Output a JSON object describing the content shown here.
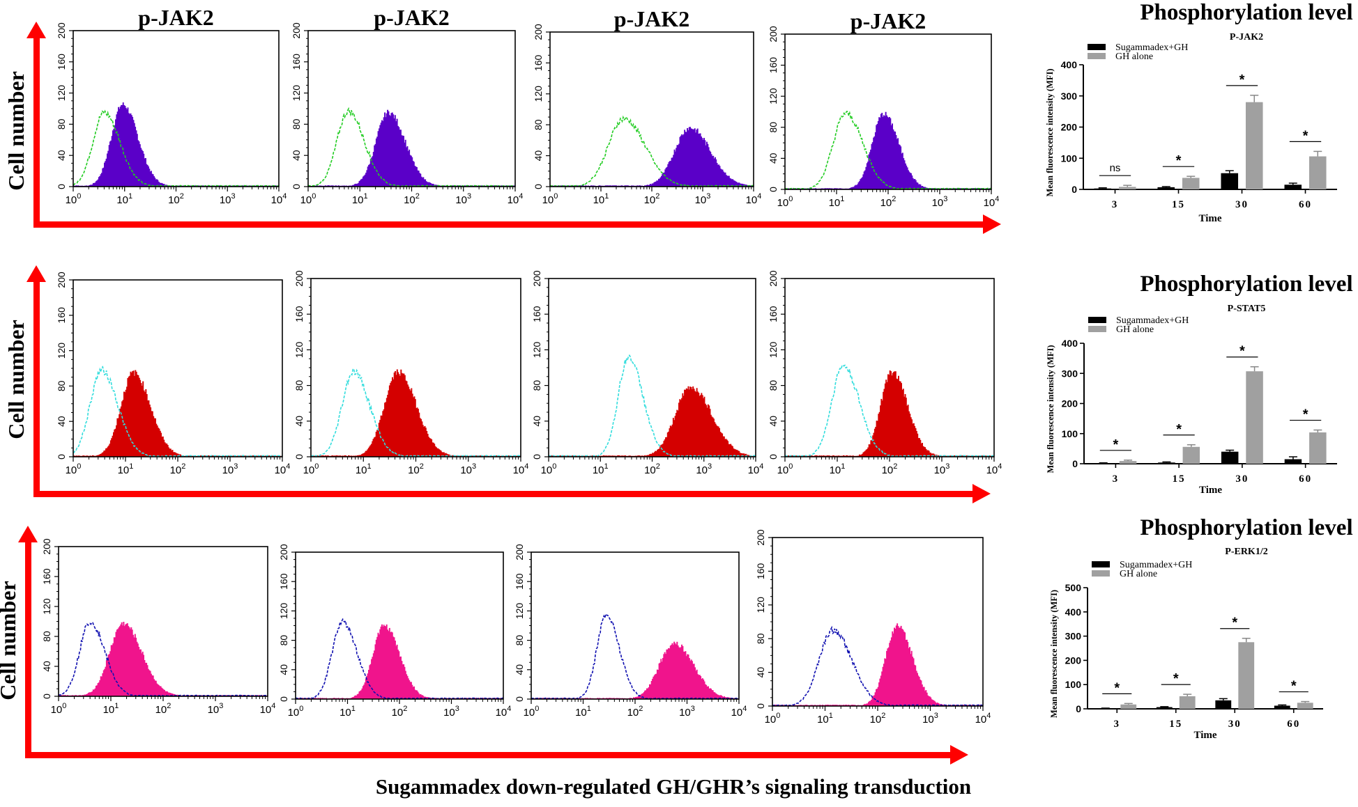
{
  "figure_caption": "Sugammadex down-regulated GH/GHR’s signaling transduction",
  "flow_axis_label": "Cell number",
  "colors": {
    "arrow": "#ff0000",
    "row1_fill": "#5a00c8",
    "row1_outline": "#22cc22",
    "row2_fill": "#d40000",
    "row2_outline": "#33dddd",
    "row3_fill": "#f0148c",
    "row3_outline": "#1010b0",
    "bar_treated": "#000000",
    "bar_control": "#a0a0a0"
  },
  "chart_data": [
    {
      "type": "histogram-overlay",
      "row": 1,
      "panels": [
        {
          "title": "p-JAK2",
          "x_scale": "log",
          "xlim": [
            1,
            10000
          ],
          "ylim": [
            0,
            200
          ],
          "x_ticks": [
            "10^0",
            "10^1",
            "10^2",
            "10^3",
            "10^4"
          ],
          "y_ticks": [
            "0",
            "40",
            "80",
            "120",
            "160",
            "200"
          ],
          "control": {
            "style": "dashed-outline",
            "peak_x": 4,
            "peak_y": 95,
            "spread_decades": 0.22
          },
          "stained": {
            "style": "filled",
            "peak_x": 9,
            "peak_y": 105,
            "spread_decades": 0.22
          }
        },
        {
          "title": "p-JAK2",
          "x_scale": "log",
          "xlim": [
            1,
            10000
          ],
          "ylim": [
            0,
            200
          ],
          "x_ticks": [
            "10^0",
            "10^1",
            "10^2",
            "10^3",
            "10^4"
          ],
          "y_ticks": [
            "0",
            "40",
            "80",
            "120",
            "160",
            "200"
          ],
          "control": {
            "style": "dashed-outline",
            "peak_x": 6,
            "peak_y": 97,
            "spread_decades": 0.22
          },
          "stained": {
            "style": "filled",
            "peak_x": 35,
            "peak_y": 95,
            "spread_decades": 0.24
          }
        },
        {
          "title": "p-JAK2",
          "x_scale": "log",
          "xlim": [
            1,
            10000
          ],
          "ylim": [
            0,
            200
          ],
          "x_ticks": [
            "10^0",
            "10^1",
            "10^2",
            "10^3",
            "10^4"
          ],
          "y_ticks": [
            "0",
            "40",
            "80",
            "120",
            "160",
            "200"
          ],
          "control": {
            "style": "dashed-outline",
            "peak_x": 28,
            "peak_y": 88,
            "spread_decades": 0.3
          },
          "stained": {
            "style": "filled",
            "peak_x": 550,
            "peak_y": 76,
            "spread_decades": 0.3
          }
        },
        {
          "title": "p-JAK2",
          "x_scale": "log",
          "xlim": [
            1,
            10000
          ],
          "ylim": [
            0,
            200
          ],
          "x_ticks": [
            "10^0",
            "10^1",
            "10^2",
            "10^3",
            "10^4"
          ],
          "y_ticks": [
            "0",
            "40",
            "80",
            "120",
            "160",
            "200"
          ],
          "control": {
            "style": "dashed-outline",
            "peak_x": 15,
            "peak_y": 98,
            "spread_decades": 0.24
          },
          "stained": {
            "style": "filled",
            "peak_x": 80,
            "peak_y": 97,
            "spread_decades": 0.22
          }
        }
      ]
    },
    {
      "type": "histogram-overlay",
      "row": 2,
      "panels": [
        {
          "title": "",
          "x_scale": "log",
          "xlim": [
            1,
            10000
          ],
          "ylim": [
            0,
            200
          ],
          "x_ticks": [
            "10^0",
            "10^1",
            "10^2",
            "10^3",
            "10^4"
          ],
          "y_ticks": [
            "0",
            "40",
            "80",
            "120",
            "160",
            "200"
          ],
          "control": {
            "style": "dashed-outline",
            "peak_x": 3.5,
            "peak_y": 98,
            "spread_decades": 0.22
          },
          "stained": {
            "style": "filled",
            "peak_x": 14,
            "peak_y": 95,
            "spread_decades": 0.24
          }
        },
        {
          "title": "",
          "x_scale": "log",
          "xlim": [
            1,
            10000
          ],
          "ylim": [
            0,
            200
          ],
          "x_ticks": [
            "10^0",
            "10^1",
            "10^2",
            "10^3",
            "10^4"
          ],
          "y_ticks": [
            "0",
            "40",
            "80",
            "120",
            "160",
            "200"
          ],
          "control": {
            "style": "dashed-outline",
            "peak_x": 6.5,
            "peak_y": 96,
            "spread_decades": 0.22
          },
          "stained": {
            "style": "filled",
            "peak_x": 45,
            "peak_y": 95,
            "spread_decades": 0.26
          }
        },
        {
          "title": "",
          "x_scale": "log",
          "xlim": [
            1,
            10000
          ],
          "ylim": [
            0,
            200
          ],
          "x_ticks": [
            "10^0",
            "10^1",
            "10^2",
            "10^3",
            "10^4"
          ],
          "y_ticks": [
            "0",
            "40",
            "80",
            "120",
            "160",
            "200"
          ],
          "control": {
            "style": "dashed-outline",
            "peak_x": 35,
            "peak_y": 112,
            "spread_decades": 0.2
          },
          "stained": {
            "style": "filled",
            "peak_x": 550,
            "peak_y": 78,
            "spread_decades": 0.3
          }
        },
        {
          "title": "",
          "x_scale": "log",
          "xlim": [
            1,
            10000
          ],
          "ylim": [
            0,
            200
          ],
          "x_ticks": [
            "10^0",
            "10^1",
            "10^2",
            "10^3",
            "10^4"
          ],
          "y_ticks": [
            "0",
            "40",
            "80",
            "120",
            "160",
            "200"
          ],
          "control": {
            "style": "dashed-outline",
            "peak_x": 13,
            "peak_y": 102,
            "spread_decades": 0.22
          },
          "stained": {
            "style": "filled",
            "peak_x": 110,
            "peak_y": 95,
            "spread_decades": 0.22
          }
        }
      ]
    },
    {
      "type": "histogram-overlay",
      "row": 3,
      "panels": [
        {
          "title": "",
          "x_scale": "log",
          "xlim": [
            1,
            10000
          ],
          "ylim": [
            0,
            200
          ],
          "x_ticks": [
            "10^0",
            "10^1",
            "10^2",
            "10^3",
            "10^4"
          ],
          "y_ticks": [
            "0",
            "40",
            "80",
            "120",
            "160",
            "200"
          ],
          "control": {
            "style": "dashed-outline",
            "peak_x": 4,
            "peak_y": 100,
            "spread_decades": 0.2
          },
          "stained": {
            "style": "filled",
            "peak_x": 17,
            "peak_y": 97,
            "spread_decades": 0.26
          }
        },
        {
          "title": "",
          "x_scale": "log",
          "xlim": [
            1,
            10000
          ],
          "ylim": [
            0,
            200
          ],
          "x_ticks": [
            "10^0",
            "10^1",
            "10^2",
            "10^3",
            "10^4"
          ],
          "y_ticks": [
            "0",
            "40",
            "80",
            "120",
            "160",
            "200"
          ],
          "control": {
            "style": "dashed-outline",
            "peak_x": 8,
            "peak_y": 105,
            "spread_decades": 0.2
          },
          "stained": {
            "style": "filled",
            "peak_x": 50,
            "peak_y": 100,
            "spread_decades": 0.22
          }
        },
        {
          "title": "",
          "x_scale": "log",
          "xlim": [
            1,
            10000
          ],
          "ylim": [
            0,
            200
          ],
          "x_ticks": [
            "10^0",
            "10^1",
            "10^2",
            "10^3",
            "10^4"
          ],
          "y_ticks": [
            "0",
            "40",
            "80",
            "120",
            "160",
            "200"
          ],
          "control": {
            "style": "dashed-outline",
            "peak_x": 28,
            "peak_y": 115,
            "spread_decades": 0.18
          },
          "stained": {
            "style": "filled",
            "peak_x": 550,
            "peak_y": 76,
            "spread_decades": 0.28
          }
        },
        {
          "title": "",
          "x_scale": "log",
          "xlim": [
            1,
            10000
          ],
          "ylim": [
            0,
            200
          ],
          "x_ticks": [
            "10^0",
            "10^1",
            "10^2",
            "10^3",
            "10^4"
          ],
          "y_ticks": [
            "0",
            "40",
            "80",
            "120",
            "160",
            "200"
          ],
          "control": {
            "style": "dashed-outline",
            "peak_x": 14,
            "peak_y": 90,
            "spread_decades": 0.26
          },
          "stained": {
            "style": "filled",
            "peak_x": 230,
            "peak_y": 94,
            "spread_decades": 0.22
          }
        }
      ]
    },
    {
      "type": "bar",
      "title": "Phosphorylation level",
      "subtitle": "P-JAK2",
      "xlabel": "Time",
      "ylabel": "Mean fluorescence intensity (MFI)",
      "categories": [
        "3",
        "15",
        "30",
        "60"
      ],
      "ylim": [
        0,
        400
      ],
      "y_ticks": [
        "0",
        "100",
        "200",
        "300",
        "400"
      ],
      "legend": "top-left",
      "series": [
        {
          "name": "Sugammadex+GH",
          "values": [
            3,
            7,
            52,
            15
          ],
          "errors": [
            2,
            2,
            8,
            5
          ]
        },
        {
          "name": "GH alone",
          "values": [
            8,
            37,
            280,
            106
          ],
          "errors": [
            5,
            5,
            22,
            16
          ]
        }
      ],
      "significance": [
        "ns",
        "*",
        "*",
        "*"
      ]
    },
    {
      "type": "bar",
      "title": "Phosphorylation level",
      "subtitle": "P-STAT5",
      "xlabel": "Time",
      "ylabel": "Mean fluorescence intensity (MFI)",
      "categories": [
        "3",
        "15",
        "30",
        "60"
      ],
      "ylim": [
        0,
        400
      ],
      "y_ticks": [
        "0",
        "100",
        "200",
        "300",
        "400"
      ],
      "legend": "top-left",
      "series": [
        {
          "name": "Sugammadex+GH",
          "values": [
            2,
            4,
            40,
            15
          ],
          "errors": [
            1,
            2,
            5,
            8
          ]
        },
        {
          "name": "GH alone",
          "values": [
            9,
            56,
            307,
            104
          ],
          "errors": [
            3,
            7,
            15,
            8
          ]
        }
      ],
      "significance": [
        "*",
        "*",
        "*",
        "*"
      ]
    },
    {
      "type": "bar",
      "title": "Phosphorylation level",
      "subtitle": "P-ERK1/2",
      "xlabel": "Time",
      "ylabel": "Mean fluorescence intensity (MFI)",
      "categories": [
        "3",
        "15",
        "30",
        "60"
      ],
      "ylim": [
        0,
        500
      ],
      "y_ticks": [
        "0",
        "100",
        "200",
        "300",
        "400",
        "500"
      ],
      "legend": "top-left",
      "series": [
        {
          "name": "Sugammadex+GH",
          "values": [
            2,
            7,
            35,
            13
          ],
          "errors": [
            1,
            2,
            7,
            3
          ]
        },
        {
          "name": "GH alone",
          "values": [
            18,
            52,
            275,
            25
          ],
          "errors": [
            4,
            8,
            16,
            5
          ]
        }
      ],
      "significance": [
        "*",
        "*",
        "*",
        "*"
      ]
    }
  ]
}
